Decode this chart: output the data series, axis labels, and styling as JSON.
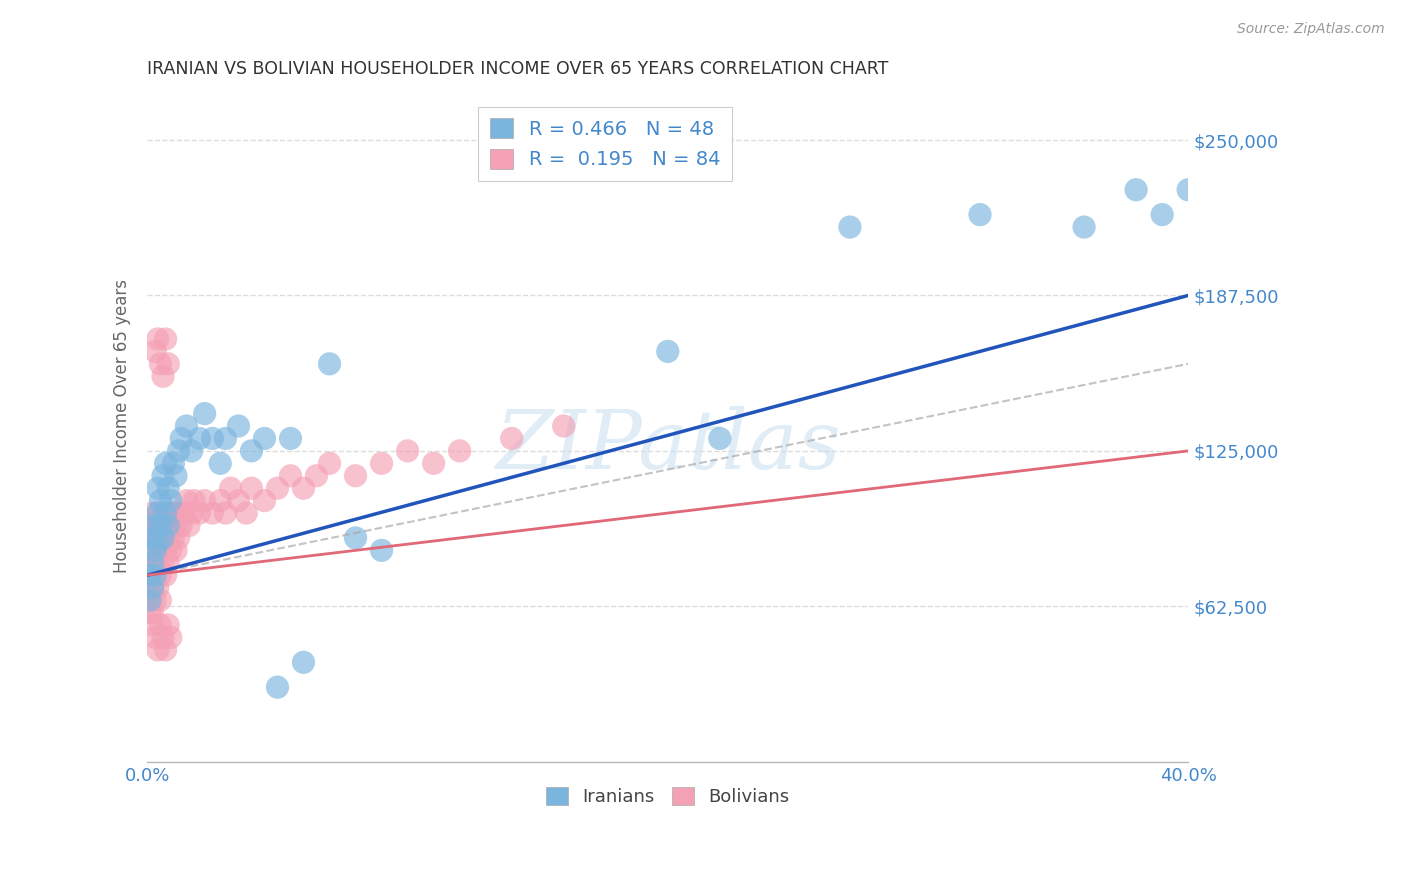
{
  "title": "IRANIAN VS BOLIVIAN HOUSEHOLDER INCOME OVER 65 YEARS CORRELATION CHART",
  "source": "Source: ZipAtlas.com",
  "ylabel": "Householder Income Over 65 years",
  "x_min": 0.0,
  "x_max": 0.4,
  "y_min": 0,
  "y_max": 270000,
  "yticks": [
    0,
    62500,
    125000,
    187500,
    250000
  ],
  "ytick_labels": [
    "",
    "$62,500",
    "$125,000",
    "$187,500",
    "$250,000"
  ],
  "xtick_positions": [
    0.0,
    0.05,
    0.1,
    0.15,
    0.2,
    0.25,
    0.3,
    0.35,
    0.4
  ],
  "xtick_labeled": [
    0.0,
    0.4
  ],
  "xtick_label_values": [
    "0.0%",
    "40.0%"
  ],
  "watermark": "ZIPatlas",
  "legend_R_iranian": "0.466",
  "legend_N_iranian": "48",
  "legend_R_bolivian": "0.195",
  "legend_N_bolivian": "84",
  "iranian_color": "#7ab5de",
  "bolivian_color": "#f4a0b5",
  "trend_iranian_color": "#2255bb",
  "trend_bolivian_color": "#e06878",
  "axis_label_color": "#4488cc",
  "title_color": "#333333",
  "grid_color": "#dddddd",
  "background_color": "#ffffff",
  "watermark_color": "#c8dff0",
  "iranians_x": [
    0.001,
    0.001,
    0.002,
    0.002,
    0.002,
    0.003,
    0.003,
    0.003,
    0.004,
    0.004,
    0.004,
    0.005,
    0.005,
    0.006,
    0.006,
    0.007,
    0.007,
    0.008,
    0.008,
    0.009,
    0.01,
    0.011,
    0.012,
    0.013,
    0.015,
    0.017,
    0.02,
    0.022,
    0.025,
    0.028,
    0.03,
    0.035,
    0.04,
    0.045,
    0.05,
    0.055,
    0.06,
    0.07,
    0.08,
    0.09,
    0.2,
    0.22,
    0.27,
    0.32,
    0.36,
    0.38,
    0.39,
    0.4
  ],
  "iranians_y": [
    75000,
    65000,
    80000,
    90000,
    70000,
    85000,
    95000,
    75000,
    100000,
    88000,
    110000,
    95000,
    105000,
    90000,
    115000,
    100000,
    120000,
    95000,
    110000,
    105000,
    120000,
    115000,
    125000,
    130000,
    135000,
    125000,
    130000,
    140000,
    130000,
    120000,
    130000,
    135000,
    125000,
    130000,
    30000,
    130000,
    40000,
    160000,
    90000,
    85000,
    165000,
    130000,
    215000,
    220000,
    215000,
    230000,
    220000,
    230000
  ],
  "bolivians_x": [
    0.001,
    0.001,
    0.001,
    0.001,
    0.001,
    0.001,
    0.001,
    0.001,
    0.002,
    0.002,
    0.002,
    0.002,
    0.002,
    0.003,
    0.003,
    0.003,
    0.003,
    0.004,
    0.004,
    0.004,
    0.004,
    0.005,
    0.005,
    0.005,
    0.005,
    0.006,
    0.006,
    0.006,
    0.007,
    0.007,
    0.007,
    0.008,
    0.008,
    0.008,
    0.009,
    0.009,
    0.01,
    0.01,
    0.011,
    0.011,
    0.012,
    0.012,
    0.013,
    0.014,
    0.015,
    0.016,
    0.017,
    0.018,
    0.02,
    0.022,
    0.025,
    0.028,
    0.03,
    0.032,
    0.035,
    0.038,
    0.04,
    0.045,
    0.05,
    0.055,
    0.06,
    0.065,
    0.07,
    0.08,
    0.09,
    0.1,
    0.11,
    0.12,
    0.14,
    0.16,
    0.002,
    0.003,
    0.004,
    0.005,
    0.006,
    0.007,
    0.008,
    0.009,
    0.003,
    0.004,
    0.005,
    0.006,
    0.007,
    0.008
  ],
  "bolivians_y": [
    80000,
    70000,
    90000,
    60000,
    75000,
    85000,
    65000,
    95000,
    80000,
    70000,
    90000,
    60000,
    100000,
    85000,
    75000,
    95000,
    65000,
    90000,
    80000,
    70000,
    100000,
    85000,
    95000,
    75000,
    65000,
    90000,
    80000,
    100000,
    85000,
    75000,
    95000,
    90000,
    80000,
    100000,
    85000,
    95000,
    90000,
    100000,
    85000,
    95000,
    100000,
    90000,
    95000,
    100000,
    105000,
    95000,
    100000,
    105000,
    100000,
    105000,
    100000,
    105000,
    100000,
    110000,
    105000,
    100000,
    110000,
    105000,
    110000,
    115000,
    110000,
    115000,
    120000,
    115000,
    120000,
    125000,
    120000,
    125000,
    130000,
    135000,
    55000,
    50000,
    45000,
    55000,
    50000,
    45000,
    55000,
    50000,
    165000,
    170000,
    160000,
    155000,
    170000,
    160000
  ]
}
